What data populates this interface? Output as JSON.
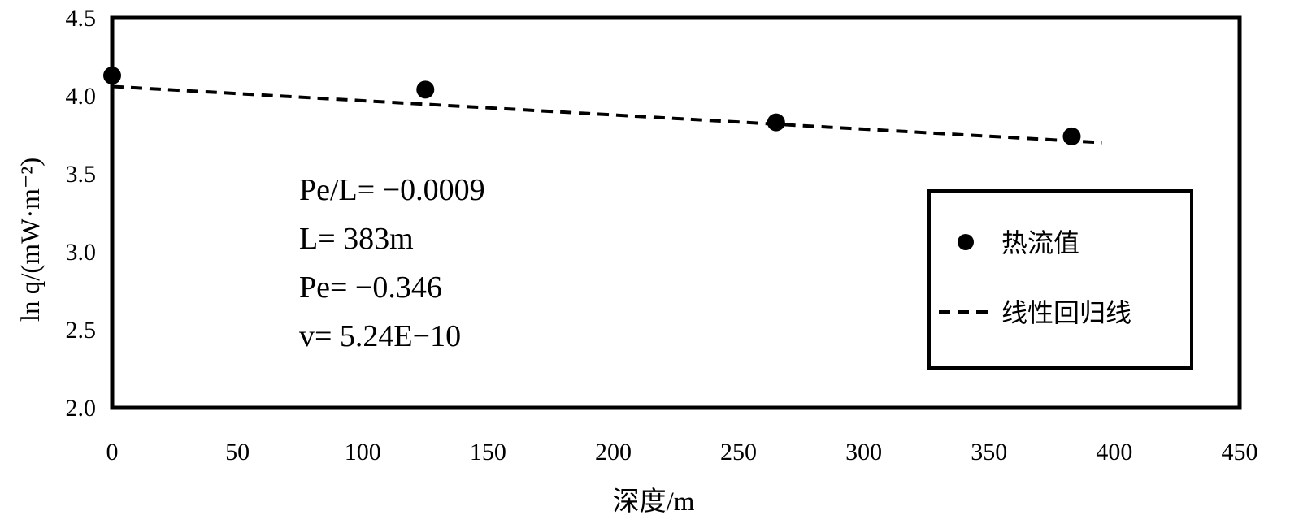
{
  "chart_data": {
    "type": "scatter",
    "xlabel": "深度/m",
    "ylabel": "ln q/(mW·m⁻²)",
    "xlim": [
      0,
      450
    ],
    "ylim": [
      2.0,
      4.5
    ],
    "x_ticks": [
      "0",
      "50",
      "100",
      "150",
      "200",
      "250",
      "300",
      "350",
      "400",
      "450"
    ],
    "y_ticks": [
      "2.0",
      "2.5",
      "3.0",
      "3.5",
      "4.0",
      "4.5"
    ],
    "grid": false,
    "legend_position": "right",
    "series": [
      {
        "name": "热流值",
        "kind": "scatter",
        "x": [
          0,
          125,
          265,
          383
        ],
        "y": [
          4.13,
          4.04,
          3.83,
          3.74
        ]
      },
      {
        "name": "线性回归线",
        "kind": "line",
        "style": "dashed",
        "x": [
          0,
          395
        ],
        "y": [
          4.06,
          3.7
        ]
      }
    ],
    "annotations": [
      "Pe/L= −0.0009",
      "L= 383m",
      "Pe= −0.346",
      "v= 5.24E−10"
    ]
  },
  "colors": {
    "ink": "#000000",
    "background": "#ffffff"
  }
}
